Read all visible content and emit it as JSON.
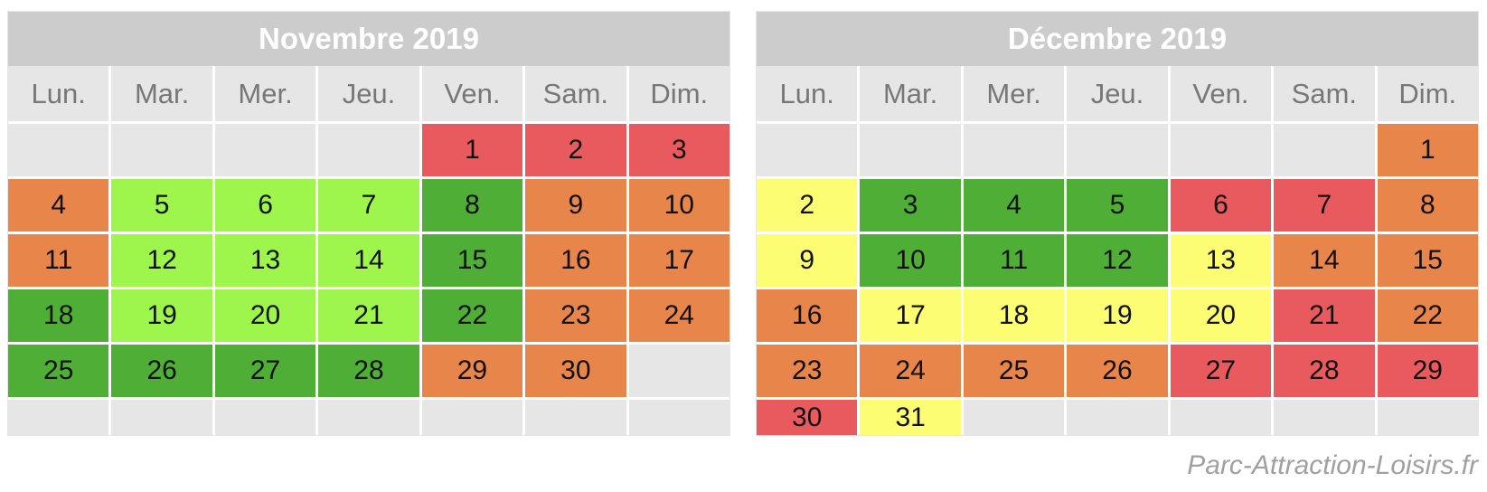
{
  "weekdays": [
    "Lun.",
    "Mar.",
    "Mer.",
    "Jeu.",
    "Ven.",
    "Sam.",
    "Dim."
  ],
  "colors": {
    "red": "#e85a5e",
    "orange": "#e8854a",
    "lime": "#9ef54c",
    "green": "#4fae35",
    "yellow": "#fdfd74",
    "empty": "#e6e6e6"
  },
  "months": [
    {
      "title": "Novembre 2019",
      "weeks": [
        [
          null,
          null,
          null,
          null,
          {
            "d": "1",
            "c": "red"
          },
          {
            "d": "2",
            "c": "red"
          },
          {
            "d": "3",
            "c": "red"
          }
        ],
        [
          {
            "d": "4",
            "c": "orange"
          },
          {
            "d": "5",
            "c": "lime"
          },
          {
            "d": "6",
            "c": "lime"
          },
          {
            "d": "7",
            "c": "lime"
          },
          {
            "d": "8",
            "c": "green"
          },
          {
            "d": "9",
            "c": "orange"
          },
          {
            "d": "10",
            "c": "orange"
          }
        ],
        [
          {
            "d": "11",
            "c": "orange"
          },
          {
            "d": "12",
            "c": "lime"
          },
          {
            "d": "13",
            "c": "lime"
          },
          {
            "d": "14",
            "c": "lime"
          },
          {
            "d": "15",
            "c": "green"
          },
          {
            "d": "16",
            "c": "orange"
          },
          {
            "d": "17",
            "c": "orange"
          }
        ],
        [
          {
            "d": "18",
            "c": "green"
          },
          {
            "d": "19",
            "c": "lime"
          },
          {
            "d": "20",
            "c": "lime"
          },
          {
            "d": "21",
            "c": "lime"
          },
          {
            "d": "22",
            "c": "green"
          },
          {
            "d": "23",
            "c": "orange"
          },
          {
            "d": "24",
            "c": "orange"
          }
        ],
        [
          {
            "d": "25",
            "c": "green"
          },
          {
            "d": "26",
            "c": "green"
          },
          {
            "d": "27",
            "c": "green"
          },
          {
            "d": "28",
            "c": "green"
          },
          {
            "d": "29",
            "c": "orange"
          },
          {
            "d": "30",
            "c": "orange"
          },
          null
        ],
        [
          null,
          null,
          null,
          null,
          null,
          null,
          null
        ]
      ]
    },
    {
      "title": "Décembre 2019",
      "weeks": [
        [
          null,
          null,
          null,
          null,
          null,
          null,
          {
            "d": "1",
            "c": "orange"
          }
        ],
        [
          {
            "d": "2",
            "c": "yellow"
          },
          {
            "d": "3",
            "c": "green"
          },
          {
            "d": "4",
            "c": "green"
          },
          {
            "d": "5",
            "c": "green"
          },
          {
            "d": "6",
            "c": "red"
          },
          {
            "d": "7",
            "c": "red"
          },
          {
            "d": "8",
            "c": "orange"
          }
        ],
        [
          {
            "d": "9",
            "c": "yellow"
          },
          {
            "d": "10",
            "c": "green"
          },
          {
            "d": "11",
            "c": "green"
          },
          {
            "d": "12",
            "c": "green"
          },
          {
            "d": "13",
            "c": "yellow"
          },
          {
            "d": "14",
            "c": "orange"
          },
          {
            "d": "15",
            "c": "orange"
          }
        ],
        [
          {
            "d": "16",
            "c": "orange"
          },
          {
            "d": "17",
            "c": "yellow"
          },
          {
            "d": "18",
            "c": "yellow"
          },
          {
            "d": "19",
            "c": "yellow"
          },
          {
            "d": "20",
            "c": "yellow"
          },
          {
            "d": "21",
            "c": "red"
          },
          {
            "d": "22",
            "c": "orange"
          }
        ],
        [
          {
            "d": "23",
            "c": "orange"
          },
          {
            "d": "24",
            "c": "orange"
          },
          {
            "d": "25",
            "c": "orange"
          },
          {
            "d": "26",
            "c": "orange"
          },
          {
            "d": "27",
            "c": "red"
          },
          {
            "d": "28",
            "c": "red"
          },
          {
            "d": "29",
            "c": "red"
          }
        ],
        [
          {
            "d": "30",
            "c": "red"
          },
          {
            "d": "31",
            "c": "yellow"
          },
          null,
          null,
          null,
          null,
          null
        ]
      ]
    }
  ],
  "credit": "Parc-Attraction-Loisirs.fr"
}
